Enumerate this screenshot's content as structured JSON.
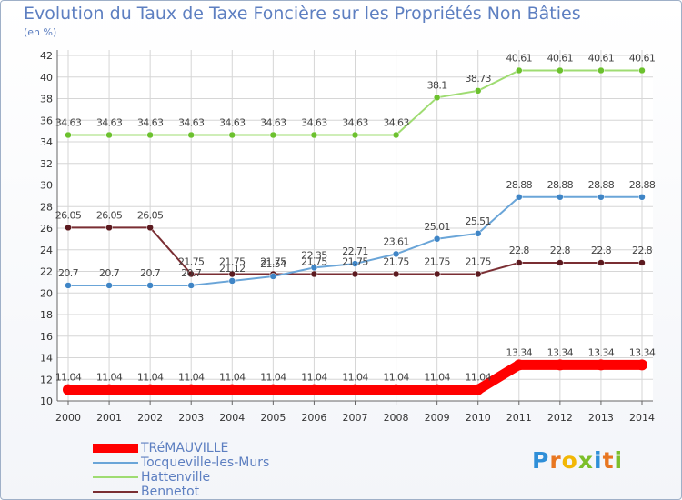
{
  "title": "Evolution du Taux de Taxe Foncière sur les Propriétés Non Bâties",
  "unit": "(en %)",
  "logo": {
    "text": "Proxiti",
    "letters": [
      {
        "ch": "P",
        "color": "#2f8fd8"
      },
      {
        "ch": "r",
        "color": "#e87722"
      },
      {
        "ch": "o",
        "color": "#f2b705"
      },
      {
        "ch": "x",
        "color": "#7cbf2a"
      },
      {
        "ch": "i",
        "color": "#2f8fd8"
      },
      {
        "ch": "t",
        "color": "#e87722"
      },
      {
        "ch": "i",
        "color": "#7cbf2a"
      }
    ]
  },
  "chart_data": {
    "type": "line",
    "title": "Evolution du Taux de Taxe Foncière sur les Propriétés Non Bâties",
    "ylabel": "(en %)",
    "xlabel": "",
    "categories": [
      "2000",
      "2001",
      "2002",
      "2003",
      "2004",
      "2005",
      "2006",
      "2007",
      "2008",
      "2009",
      "2010",
      "2011",
      "2012",
      "2013",
      "2014"
    ],
    "ylim": [
      10,
      42
    ],
    "yticks": [
      10,
      12,
      14,
      16,
      18,
      20,
      22,
      24,
      26,
      28,
      30,
      32,
      34,
      36,
      38,
      40,
      42
    ],
    "grid": true,
    "legend_position": "bottom-left",
    "series": [
      {
        "name": "TRéMAUVILLE",
        "color": "#ff0000",
        "marker_color": "#ff0000",
        "emphasis": true,
        "values": [
          11.04,
          11.04,
          11.04,
          11.04,
          11.04,
          11.04,
          11.04,
          11.04,
          11.04,
          11.04,
          11.04,
          13.34,
          13.34,
          13.34,
          13.34
        ],
        "labels": [
          "11.04",
          "11.04",
          "11.04",
          "11.04",
          "11.04",
          "11.04",
          "11.04",
          "11.04",
          "11.04",
          "11.04",
          "11.04",
          "13.34",
          "13.34",
          "13.34",
          "13.34"
        ]
      },
      {
        "name": "Tocqueville-les-Murs",
        "color": "#6aa5d8",
        "marker_color": "#3f85c6",
        "values": [
          20.7,
          20.7,
          20.7,
          20.7,
          21.12,
          21.54,
          22.35,
          22.71,
          23.61,
          25.01,
          25.51,
          28.88,
          28.88,
          28.88,
          28.88
        ],
        "labels": [
          "20.7",
          "20.7",
          "20.7",
          "20.7",
          "21.12",
          "21.54",
          "22.35",
          "22.71",
          "23.61",
          "25.01",
          "25.51",
          "28.88",
          "28.88",
          "28.88",
          "28.88"
        ]
      },
      {
        "name": "Hattenville",
        "color": "#9fdc72",
        "marker_color": "#6cc12e",
        "values": [
          34.63,
          34.63,
          34.63,
          34.63,
          34.63,
          34.63,
          34.63,
          34.63,
          34.63,
          38.1,
          38.73,
          40.61,
          40.61,
          40.61,
          40.61
        ],
        "labels": [
          "34.63",
          "34.63",
          "34.63",
          "34.63",
          "34.63",
          "34.63",
          "34.63",
          "34.63",
          "34.63",
          "38.1",
          "38.73",
          "40.61",
          "40.61",
          "40.61",
          "40.61"
        ]
      },
      {
        "name": "Bennetot",
        "color": "#7a2e33",
        "marker_color": "#5c1a1f",
        "values": [
          26.05,
          26.05,
          26.05,
          21.75,
          21.75,
          21.75,
          21.75,
          21.75,
          21.75,
          21.75,
          21.75,
          22.8,
          22.8,
          22.8,
          22.8
        ],
        "labels": [
          "26.05",
          "26.05",
          "26.05",
          "21.75",
          "21.75",
          "21.75",
          "21.75",
          "21.75",
          "21.75",
          "21.75",
          "21.75",
          "22.8",
          "22.8",
          "22.8",
          "22.8"
        ]
      }
    ]
  }
}
